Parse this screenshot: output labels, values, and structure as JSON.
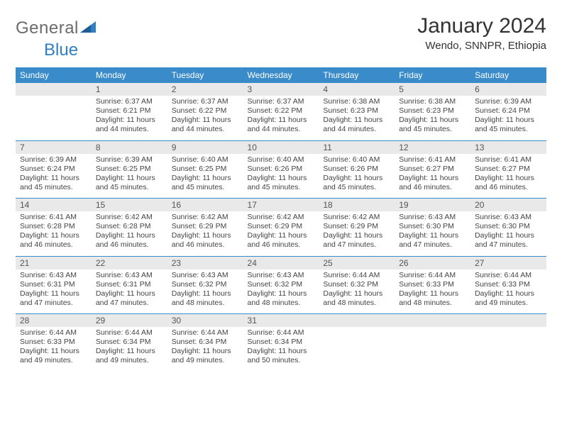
{
  "logo": {
    "word1": "General",
    "word2": "Blue"
  },
  "title": "January 2024",
  "subtitle": "Wendo, SNNPR, Ethiopia",
  "colors": {
    "header_bg": "#3a8bc9",
    "header_text": "#ffffff",
    "daynum_bg": "#e9e9e9",
    "row_border": "#3a8bc9",
    "logo_gray": "#6b6b6b",
    "logo_blue": "#2f7fc2"
  },
  "dow": [
    "Sunday",
    "Monday",
    "Tuesday",
    "Wednesday",
    "Thursday",
    "Friday",
    "Saturday"
  ],
  "weeks": [
    {
      "nums": [
        "",
        "1",
        "2",
        "3",
        "4",
        "5",
        "6"
      ],
      "cells": [
        null,
        {
          "sunrise": "Sunrise: 6:37 AM",
          "sunset": "Sunset: 6:21 PM",
          "day1": "Daylight: 11 hours",
          "day2": "and 44 minutes."
        },
        {
          "sunrise": "Sunrise: 6:37 AM",
          "sunset": "Sunset: 6:22 PM",
          "day1": "Daylight: 11 hours",
          "day2": "and 44 minutes."
        },
        {
          "sunrise": "Sunrise: 6:37 AM",
          "sunset": "Sunset: 6:22 PM",
          "day1": "Daylight: 11 hours",
          "day2": "and 44 minutes."
        },
        {
          "sunrise": "Sunrise: 6:38 AM",
          "sunset": "Sunset: 6:23 PM",
          "day1": "Daylight: 11 hours",
          "day2": "and 44 minutes."
        },
        {
          "sunrise": "Sunrise: 6:38 AM",
          "sunset": "Sunset: 6:23 PM",
          "day1": "Daylight: 11 hours",
          "day2": "and 45 minutes."
        },
        {
          "sunrise": "Sunrise: 6:39 AM",
          "sunset": "Sunset: 6:24 PM",
          "day1": "Daylight: 11 hours",
          "day2": "and 45 minutes."
        }
      ]
    },
    {
      "nums": [
        "7",
        "8",
        "9",
        "10",
        "11",
        "12",
        "13"
      ],
      "cells": [
        {
          "sunrise": "Sunrise: 6:39 AM",
          "sunset": "Sunset: 6:24 PM",
          "day1": "Daylight: 11 hours",
          "day2": "and 45 minutes."
        },
        {
          "sunrise": "Sunrise: 6:39 AM",
          "sunset": "Sunset: 6:25 PM",
          "day1": "Daylight: 11 hours",
          "day2": "and 45 minutes."
        },
        {
          "sunrise": "Sunrise: 6:40 AM",
          "sunset": "Sunset: 6:25 PM",
          "day1": "Daylight: 11 hours",
          "day2": "and 45 minutes."
        },
        {
          "sunrise": "Sunrise: 6:40 AM",
          "sunset": "Sunset: 6:26 PM",
          "day1": "Daylight: 11 hours",
          "day2": "and 45 minutes."
        },
        {
          "sunrise": "Sunrise: 6:40 AM",
          "sunset": "Sunset: 6:26 PM",
          "day1": "Daylight: 11 hours",
          "day2": "and 45 minutes."
        },
        {
          "sunrise": "Sunrise: 6:41 AM",
          "sunset": "Sunset: 6:27 PM",
          "day1": "Daylight: 11 hours",
          "day2": "and 46 minutes."
        },
        {
          "sunrise": "Sunrise: 6:41 AM",
          "sunset": "Sunset: 6:27 PM",
          "day1": "Daylight: 11 hours",
          "day2": "and 46 minutes."
        }
      ]
    },
    {
      "nums": [
        "14",
        "15",
        "16",
        "17",
        "18",
        "19",
        "20"
      ],
      "cells": [
        {
          "sunrise": "Sunrise: 6:41 AM",
          "sunset": "Sunset: 6:28 PM",
          "day1": "Daylight: 11 hours",
          "day2": "and 46 minutes."
        },
        {
          "sunrise": "Sunrise: 6:42 AM",
          "sunset": "Sunset: 6:28 PM",
          "day1": "Daylight: 11 hours",
          "day2": "and 46 minutes."
        },
        {
          "sunrise": "Sunrise: 6:42 AM",
          "sunset": "Sunset: 6:29 PM",
          "day1": "Daylight: 11 hours",
          "day2": "and 46 minutes."
        },
        {
          "sunrise": "Sunrise: 6:42 AM",
          "sunset": "Sunset: 6:29 PM",
          "day1": "Daylight: 11 hours",
          "day2": "and 46 minutes."
        },
        {
          "sunrise": "Sunrise: 6:42 AM",
          "sunset": "Sunset: 6:29 PM",
          "day1": "Daylight: 11 hours",
          "day2": "and 47 minutes."
        },
        {
          "sunrise": "Sunrise: 6:43 AM",
          "sunset": "Sunset: 6:30 PM",
          "day1": "Daylight: 11 hours",
          "day2": "and 47 minutes."
        },
        {
          "sunrise": "Sunrise: 6:43 AM",
          "sunset": "Sunset: 6:30 PM",
          "day1": "Daylight: 11 hours",
          "day2": "and 47 minutes."
        }
      ]
    },
    {
      "nums": [
        "21",
        "22",
        "23",
        "24",
        "25",
        "26",
        "27"
      ],
      "cells": [
        {
          "sunrise": "Sunrise: 6:43 AM",
          "sunset": "Sunset: 6:31 PM",
          "day1": "Daylight: 11 hours",
          "day2": "and 47 minutes."
        },
        {
          "sunrise": "Sunrise: 6:43 AM",
          "sunset": "Sunset: 6:31 PM",
          "day1": "Daylight: 11 hours",
          "day2": "and 47 minutes."
        },
        {
          "sunrise": "Sunrise: 6:43 AM",
          "sunset": "Sunset: 6:32 PM",
          "day1": "Daylight: 11 hours",
          "day2": "and 48 minutes."
        },
        {
          "sunrise": "Sunrise: 6:43 AM",
          "sunset": "Sunset: 6:32 PM",
          "day1": "Daylight: 11 hours",
          "day2": "and 48 minutes."
        },
        {
          "sunrise": "Sunrise: 6:44 AM",
          "sunset": "Sunset: 6:32 PM",
          "day1": "Daylight: 11 hours",
          "day2": "and 48 minutes."
        },
        {
          "sunrise": "Sunrise: 6:44 AM",
          "sunset": "Sunset: 6:33 PM",
          "day1": "Daylight: 11 hours",
          "day2": "and 48 minutes."
        },
        {
          "sunrise": "Sunrise: 6:44 AM",
          "sunset": "Sunset: 6:33 PM",
          "day1": "Daylight: 11 hours",
          "day2": "and 49 minutes."
        }
      ]
    },
    {
      "nums": [
        "28",
        "29",
        "30",
        "31",
        "",
        "",
        ""
      ],
      "cells": [
        {
          "sunrise": "Sunrise: 6:44 AM",
          "sunset": "Sunset: 6:33 PM",
          "day1": "Daylight: 11 hours",
          "day2": "and 49 minutes."
        },
        {
          "sunrise": "Sunrise: 6:44 AM",
          "sunset": "Sunset: 6:34 PM",
          "day1": "Daylight: 11 hours",
          "day2": "and 49 minutes."
        },
        {
          "sunrise": "Sunrise: 6:44 AM",
          "sunset": "Sunset: 6:34 PM",
          "day1": "Daylight: 11 hours",
          "day2": "and 49 minutes."
        },
        {
          "sunrise": "Sunrise: 6:44 AM",
          "sunset": "Sunset: 6:34 PM",
          "day1": "Daylight: 11 hours",
          "day2": "and 50 minutes."
        },
        null,
        null,
        null
      ]
    }
  ]
}
